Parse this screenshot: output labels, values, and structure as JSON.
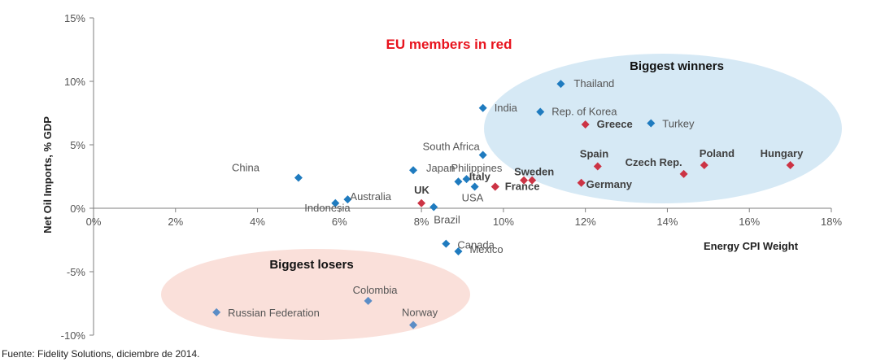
{
  "chart_data": {
    "type": "scatter",
    "title": "",
    "xlabel": "Energy CPI Weight",
    "ylabel": "Net Oil Imports, % GDP",
    "xlim": [
      0,
      18
    ],
    "ylim": [
      -10,
      15
    ],
    "x_ticks": [
      "0%",
      "2%",
      "4%",
      "6%",
      "8%",
      "10%",
      "12%",
      "14%",
      "16%",
      "18%"
    ],
    "y_ticks": [
      "15%",
      "10%",
      "5%",
      "0%",
      "-5%",
      "-10%"
    ],
    "grid": false,
    "legend_note": "EU members in red",
    "colors": {
      "non_eu": "#1f7bbf",
      "eu": "#cc3344",
      "loser": "#5b8dc6",
      "note": "#e8141e"
    },
    "groups": [
      {
        "label": "Biggest winners",
        "fill": "#d6e9f5"
      },
      {
        "label": "Biggest losers",
        "fill": "#fae0da"
      }
    ],
    "points": [
      {
        "name": "China",
        "x": 5.0,
        "y": 2.4,
        "eu": false
      },
      {
        "name": "Indonesia",
        "x": 5.9,
        "y": 0.4,
        "eu": false
      },
      {
        "name": "Australia",
        "x": 6.2,
        "y": 0.7,
        "eu": false
      },
      {
        "name": "Japan",
        "x": 7.8,
        "y": 3.0,
        "eu": false
      },
      {
        "name": "Brazil",
        "x": 8.3,
        "y": 0.1,
        "eu": false
      },
      {
        "name": "Philippines",
        "x": 8.9,
        "y": 2.1,
        "eu": false
      },
      {
        "name": "",
        "x": 9.1,
        "y": 2.3,
        "eu": false
      },
      {
        "name": "USA",
        "x": 9.3,
        "y": 1.7,
        "eu": false
      },
      {
        "name": "South Africa",
        "x": 9.5,
        "y": 4.2,
        "eu": false
      },
      {
        "name": "India",
        "x": 9.5,
        "y": 7.9,
        "eu": false
      },
      {
        "name": "Rep. of Korea",
        "x": 10.9,
        "y": 7.6,
        "eu": false
      },
      {
        "name": "Thailand",
        "x": 11.4,
        "y": 9.8,
        "eu": false
      },
      {
        "name": "Turkey",
        "x": 13.6,
        "y": 6.7,
        "eu": false
      },
      {
        "name": "Canada",
        "x": 8.6,
        "y": -2.8,
        "eu": false
      },
      {
        "name": "Mexico",
        "x": 8.9,
        "y": -3.4,
        "eu": false
      },
      {
        "name": "Russian Federation",
        "x": 3.0,
        "y": -8.2,
        "eu": false
      },
      {
        "name": "Colombia",
        "x": 6.7,
        "y": -7.3,
        "eu": false
      },
      {
        "name": "Norway",
        "x": 7.8,
        "y": -9.2,
        "eu": false
      },
      {
        "name": "UK",
        "x": 8.0,
        "y": 0.4,
        "eu": true
      },
      {
        "name": "Italy",
        "x": 9.8,
        "y": 1.7,
        "eu": true
      },
      {
        "name": "France",
        "x": 9.8,
        "y": 1.7,
        "eu": true
      },
      {
        "name": "Sweden",
        "x": 10.5,
        "y": 2.2,
        "eu": true
      },
      {
        "name": "",
        "x": 10.7,
        "y": 2.2,
        "eu": true
      },
      {
        "name": "Greece",
        "x": 12.0,
        "y": 6.6,
        "eu": true
      },
      {
        "name": "Germany",
        "x": 11.9,
        "y": 2.0,
        "eu": true
      },
      {
        "name": "Spain",
        "x": 12.3,
        "y": 3.3,
        "eu": true
      },
      {
        "name": "Czech Rep.",
        "x": 14.4,
        "y": 2.7,
        "eu": true
      },
      {
        "name": "Poland",
        "x": 14.9,
        "y": 3.4,
        "eu": true
      },
      {
        "name": "Hungary",
        "x": 17.0,
        "y": 3.4,
        "eu": true
      }
    ]
  },
  "source": "Fuente: Fidelity Solutions, diciembre de 2014."
}
